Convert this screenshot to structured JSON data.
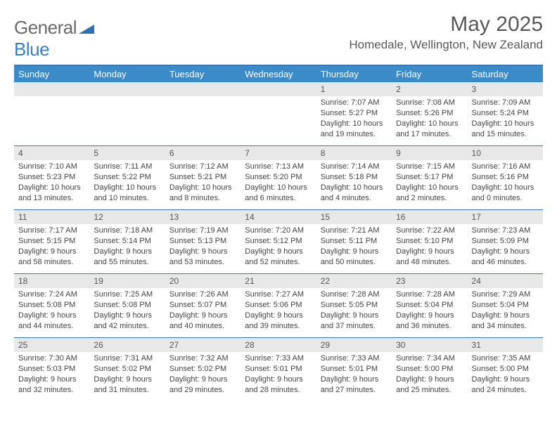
{
  "logo": {
    "text_gray": "General",
    "text_blue": "Blue"
  },
  "title": "May 2025",
  "location": "Homedale, Wellington, New Zealand",
  "colors": {
    "header_bg": "#3b8bc9",
    "border": "#3a78b5",
    "daynum_bg": "#e8e8e8",
    "text": "#444444",
    "title_text": "#595959"
  },
  "days_of_week": [
    "Sunday",
    "Monday",
    "Tuesday",
    "Wednesday",
    "Thursday",
    "Friday",
    "Saturday"
  ],
  "weeks": [
    [
      {
        "n": "",
        "sr": "",
        "ss": "",
        "dl": ""
      },
      {
        "n": "",
        "sr": "",
        "ss": "",
        "dl": ""
      },
      {
        "n": "",
        "sr": "",
        "ss": "",
        "dl": ""
      },
      {
        "n": "",
        "sr": "",
        "ss": "",
        "dl": ""
      },
      {
        "n": "1",
        "sr": "Sunrise: 7:07 AM",
        "ss": "Sunset: 5:27 PM",
        "dl": "Daylight: 10 hours and 19 minutes."
      },
      {
        "n": "2",
        "sr": "Sunrise: 7:08 AM",
        "ss": "Sunset: 5:26 PM",
        "dl": "Daylight: 10 hours and 17 minutes."
      },
      {
        "n": "3",
        "sr": "Sunrise: 7:09 AM",
        "ss": "Sunset: 5:24 PM",
        "dl": "Daylight: 10 hours and 15 minutes."
      }
    ],
    [
      {
        "n": "4",
        "sr": "Sunrise: 7:10 AM",
        "ss": "Sunset: 5:23 PM",
        "dl": "Daylight: 10 hours and 13 minutes."
      },
      {
        "n": "5",
        "sr": "Sunrise: 7:11 AM",
        "ss": "Sunset: 5:22 PM",
        "dl": "Daylight: 10 hours and 10 minutes."
      },
      {
        "n": "6",
        "sr": "Sunrise: 7:12 AM",
        "ss": "Sunset: 5:21 PM",
        "dl": "Daylight: 10 hours and 8 minutes."
      },
      {
        "n": "7",
        "sr": "Sunrise: 7:13 AM",
        "ss": "Sunset: 5:20 PM",
        "dl": "Daylight: 10 hours and 6 minutes."
      },
      {
        "n": "8",
        "sr": "Sunrise: 7:14 AM",
        "ss": "Sunset: 5:18 PM",
        "dl": "Daylight: 10 hours and 4 minutes."
      },
      {
        "n": "9",
        "sr": "Sunrise: 7:15 AM",
        "ss": "Sunset: 5:17 PM",
        "dl": "Daylight: 10 hours and 2 minutes."
      },
      {
        "n": "10",
        "sr": "Sunrise: 7:16 AM",
        "ss": "Sunset: 5:16 PM",
        "dl": "Daylight: 10 hours and 0 minutes."
      }
    ],
    [
      {
        "n": "11",
        "sr": "Sunrise: 7:17 AM",
        "ss": "Sunset: 5:15 PM",
        "dl": "Daylight: 9 hours and 58 minutes."
      },
      {
        "n": "12",
        "sr": "Sunrise: 7:18 AM",
        "ss": "Sunset: 5:14 PM",
        "dl": "Daylight: 9 hours and 55 minutes."
      },
      {
        "n": "13",
        "sr": "Sunrise: 7:19 AM",
        "ss": "Sunset: 5:13 PM",
        "dl": "Daylight: 9 hours and 53 minutes."
      },
      {
        "n": "14",
        "sr": "Sunrise: 7:20 AM",
        "ss": "Sunset: 5:12 PM",
        "dl": "Daylight: 9 hours and 52 minutes."
      },
      {
        "n": "15",
        "sr": "Sunrise: 7:21 AM",
        "ss": "Sunset: 5:11 PM",
        "dl": "Daylight: 9 hours and 50 minutes."
      },
      {
        "n": "16",
        "sr": "Sunrise: 7:22 AM",
        "ss": "Sunset: 5:10 PM",
        "dl": "Daylight: 9 hours and 48 minutes."
      },
      {
        "n": "17",
        "sr": "Sunrise: 7:23 AM",
        "ss": "Sunset: 5:09 PM",
        "dl": "Daylight: 9 hours and 46 minutes."
      }
    ],
    [
      {
        "n": "18",
        "sr": "Sunrise: 7:24 AM",
        "ss": "Sunset: 5:08 PM",
        "dl": "Daylight: 9 hours and 44 minutes."
      },
      {
        "n": "19",
        "sr": "Sunrise: 7:25 AM",
        "ss": "Sunset: 5:08 PM",
        "dl": "Daylight: 9 hours and 42 minutes."
      },
      {
        "n": "20",
        "sr": "Sunrise: 7:26 AM",
        "ss": "Sunset: 5:07 PM",
        "dl": "Daylight: 9 hours and 40 minutes."
      },
      {
        "n": "21",
        "sr": "Sunrise: 7:27 AM",
        "ss": "Sunset: 5:06 PM",
        "dl": "Daylight: 9 hours and 39 minutes."
      },
      {
        "n": "22",
        "sr": "Sunrise: 7:28 AM",
        "ss": "Sunset: 5:05 PM",
        "dl": "Daylight: 9 hours and 37 minutes."
      },
      {
        "n": "23",
        "sr": "Sunrise: 7:28 AM",
        "ss": "Sunset: 5:04 PM",
        "dl": "Daylight: 9 hours and 36 minutes."
      },
      {
        "n": "24",
        "sr": "Sunrise: 7:29 AM",
        "ss": "Sunset: 5:04 PM",
        "dl": "Daylight: 9 hours and 34 minutes."
      }
    ],
    [
      {
        "n": "25",
        "sr": "Sunrise: 7:30 AM",
        "ss": "Sunset: 5:03 PM",
        "dl": "Daylight: 9 hours and 32 minutes."
      },
      {
        "n": "26",
        "sr": "Sunrise: 7:31 AM",
        "ss": "Sunset: 5:02 PM",
        "dl": "Daylight: 9 hours and 31 minutes."
      },
      {
        "n": "27",
        "sr": "Sunrise: 7:32 AM",
        "ss": "Sunset: 5:02 PM",
        "dl": "Daylight: 9 hours and 29 minutes."
      },
      {
        "n": "28",
        "sr": "Sunrise: 7:33 AM",
        "ss": "Sunset: 5:01 PM",
        "dl": "Daylight: 9 hours and 28 minutes."
      },
      {
        "n": "29",
        "sr": "Sunrise: 7:33 AM",
        "ss": "Sunset: 5:01 PM",
        "dl": "Daylight: 9 hours and 27 minutes."
      },
      {
        "n": "30",
        "sr": "Sunrise: 7:34 AM",
        "ss": "Sunset: 5:00 PM",
        "dl": "Daylight: 9 hours and 25 minutes."
      },
      {
        "n": "31",
        "sr": "Sunrise: 7:35 AM",
        "ss": "Sunset: 5:00 PM",
        "dl": "Daylight: 9 hours and 24 minutes."
      }
    ]
  ]
}
